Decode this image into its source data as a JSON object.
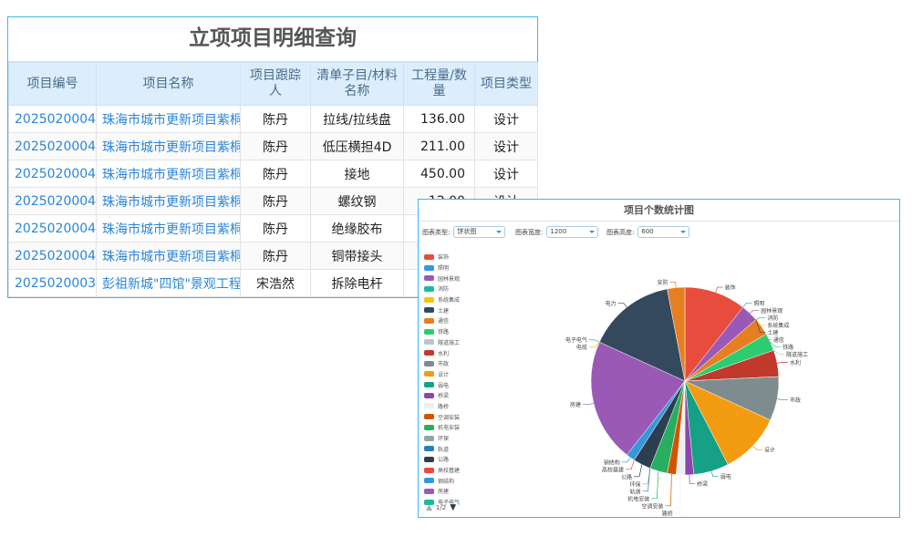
{
  "table": {
    "title": "立项项目明细查询",
    "headers": [
      "项目编号",
      "项目名称",
      "项目跟踪人",
      "清单子目/材料名称",
      "工程量/数量",
      "项目类型"
    ],
    "rows": [
      [
        "2025020004",
        "珠海市城市更新项目紫桐",
        "陈丹",
        "拉线/拉线盘",
        "136.00",
        "设计"
      ],
      [
        "2025020004",
        "珠海市城市更新项目紫桐",
        "陈丹",
        "低压横担4D",
        "211.00",
        "设计"
      ],
      [
        "2025020004",
        "珠海市城市更新项目紫桐",
        "陈丹",
        "接地",
        "450.00",
        "设计"
      ],
      [
        "2025020004",
        "珠海市城市更新项目紫桐",
        "陈丹",
        "螺纹钢",
        "12.00",
        "设计"
      ],
      [
        "2025020004",
        "珠海市城市更新项目紫桐",
        "陈丹",
        "绝缘胶布",
        "",
        ""
      ],
      [
        "2025020004",
        "珠海市城市更新项目紫桐",
        "陈丹",
        "铜带接头",
        "",
        ""
      ],
      [
        "2025020003",
        "彭祖新城\"四馆\"景观工程",
        "宋浩然",
        "拆除电杆",
        "",
        ""
      ]
    ]
  },
  "chart_panel": {
    "title": "项目个数统计图",
    "controls": [
      {
        "label": "图表类型:",
        "value": "饼状图"
      },
      {
        "label": "图表宽度:",
        "value": "1200"
      },
      {
        "label": "图表高度:",
        "value": "600"
      }
    ],
    "pager": "1/2"
  },
  "chart_data": {
    "type": "pie",
    "title": "",
    "legend_placement": "left",
    "legend_visible_count": 24,
    "categories": [
      "装饰",
      "照明",
      "园林景观",
      "消防",
      "系统集成",
      "土建",
      "通信",
      "铁路",
      "隧道施工",
      "水利",
      "市政",
      "设计",
      "弱电",
      "桥梁",
      "路桥",
      "空调安装",
      "机电安装",
      "环保",
      "轨道",
      "公路",
      "高校基建",
      "钢结构",
      "房建",
      "电子电气",
      "电缆",
      "电力",
      "安防"
    ],
    "values": [
      7,
      0,
      2,
      0,
      0,
      0,
      2,
      2,
      0,
      3,
      5,
      7,
      4,
      1,
      1,
      1,
      2,
      0,
      0,
      2,
      0,
      1,
      14,
      0,
      0,
      10,
      2
    ],
    "colors": [
      "#e74c3c",
      "#3498db",
      "#9b59b6",
      "#1abc9c",
      "#f1c40f",
      "#34495e",
      "#e67e22",
      "#2ecc71",
      "#bdc3c7",
      "#c0392b",
      "#7f8c8d",
      "#f39c12",
      "#16a085",
      "#8e44ad",
      "#ecf0f1",
      "#d35400",
      "#27ae60",
      "#95a5a6",
      "#2980b9",
      "#2c3e50",
      "#e74c3c",
      "#3498db",
      "#9b59b6",
      "#1abc9c",
      "#f1c40f",
      "#34495e",
      "#e67e22"
    ]
  }
}
